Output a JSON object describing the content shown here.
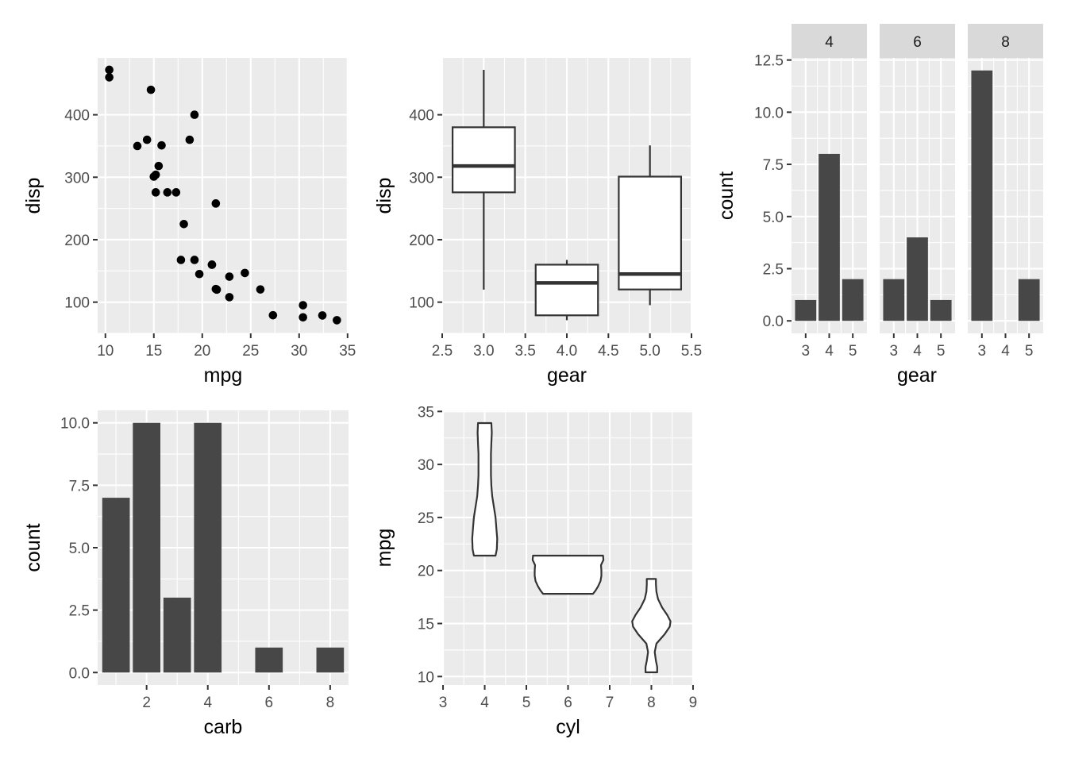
{
  "colors": {
    "panel_bg": "#ebebeb",
    "grid": "#ffffff",
    "bar": "#474747",
    "strip_bg": "#d9d9d9",
    "tick": "#333333",
    "tick_label": "#4d4d4d",
    "point": "#000000",
    "box_fill": "#ffffff",
    "outline": "#333333"
  },
  "chart_data": [
    {
      "id": "scatter",
      "type": "scatter",
      "xlabel": "mpg",
      "ylabel": "disp",
      "xlim": [
        9.2,
        35.1
      ],
      "ylim": [
        50.0,
        491.0
      ],
      "xticks": [
        10,
        15,
        20,
        25,
        30,
        35
      ],
      "yticks": [
        100,
        200,
        300,
        400
      ],
      "points": [
        {
          "x": 21.0,
          "y": 160
        },
        {
          "x": 21.0,
          "y": 160
        },
        {
          "x": 22.8,
          "y": 108
        },
        {
          "x": 21.4,
          "y": 258
        },
        {
          "x": 18.7,
          "y": 360
        },
        {
          "x": 18.1,
          "y": 225
        },
        {
          "x": 14.3,
          "y": 360
        },
        {
          "x": 24.4,
          "y": 146.7
        },
        {
          "x": 22.8,
          "y": 140.8
        },
        {
          "x": 19.2,
          "y": 167.6
        },
        {
          "x": 17.8,
          "y": 167.6
        },
        {
          "x": 16.4,
          "y": 275.8
        },
        {
          "x": 17.3,
          "y": 275.8
        },
        {
          "x": 15.2,
          "y": 275.8
        },
        {
          "x": 10.4,
          "y": 472
        },
        {
          "x": 10.4,
          "y": 460
        },
        {
          "x": 14.7,
          "y": 440
        },
        {
          "x": 32.4,
          "y": 78.7
        },
        {
          "x": 30.4,
          "y": 75.7
        },
        {
          "x": 33.9,
          "y": 71.1
        },
        {
          "x": 21.5,
          "y": 120.1
        },
        {
          "x": 15.5,
          "y": 318
        },
        {
          "x": 15.2,
          "y": 304
        },
        {
          "x": 13.3,
          "y": 350
        },
        {
          "x": 19.2,
          "y": 400
        },
        {
          "x": 27.3,
          "y": 79
        },
        {
          "x": 26.0,
          "y": 120.3
        },
        {
          "x": 30.4,
          "y": 95.1
        },
        {
          "x": 15.8,
          "y": 351
        },
        {
          "x": 19.7,
          "y": 145
        },
        {
          "x": 15.0,
          "y": 301
        },
        {
          "x": 21.4,
          "y": 121
        }
      ]
    },
    {
      "id": "boxplot",
      "type": "boxplot",
      "xlabel": "gear",
      "ylabel": "disp",
      "xlim": [
        2.5,
        5.5
      ],
      "ylim": [
        50.0,
        491.0
      ],
      "xticks": [
        2.5,
        3.0,
        3.5,
        4.0,
        4.5,
        5.0,
        5.5
      ],
      "xtick_labels": [
        "2.5",
        "3.0",
        "3.5",
        "4.0",
        "4.5",
        "5.0",
        "5.5"
      ],
      "yticks": [
        100,
        200,
        300,
        400
      ],
      "boxes": [
        {
          "x": 3,
          "min": 120.1,
          "q1": 275.8,
          "median": 318,
          "q3": 380,
          "max": 472
        },
        {
          "x": 4,
          "min": 71.1,
          "q1": 78.9,
          "median": 130.9,
          "q3": 160,
          "max": 167.6
        },
        {
          "x": 5,
          "min": 95.1,
          "q1": 120.3,
          "median": 145,
          "q3": 301,
          "max": 351
        }
      ]
    },
    {
      "id": "facet-bars",
      "type": "bar",
      "xlabel": "gear",
      "ylabel": "count",
      "ylim": [
        -0.6,
        12.6
      ],
      "yticks": [
        0.0,
        2.5,
        5.0,
        7.5,
        10.0,
        12.5
      ],
      "ytick_labels": [
        "0.0",
        "2.5",
        "5.0",
        "7.5",
        "10.0",
        "12.5"
      ],
      "categories": [
        "3",
        "4",
        "5"
      ],
      "facets": [
        {
          "label": "4",
          "values": [
            1,
            8,
            2
          ]
        },
        {
          "label": "6",
          "values": [
            2,
            4,
            1
          ]
        },
        {
          "label": "8",
          "values": [
            12,
            0,
            2
          ]
        }
      ]
    },
    {
      "id": "carb-bars",
      "type": "bar",
      "xlabel": "carb",
      "ylabel": "count",
      "xlim": [
        0.4,
        8.6
      ],
      "ylim": [
        -0.5,
        10.5
      ],
      "xticks": [
        2,
        4,
        6,
        8
      ],
      "yticks": [
        0.0,
        2.5,
        5.0,
        7.5,
        10.0
      ],
      "ytick_labels": [
        "0.0",
        "2.5",
        "5.0",
        "7.5",
        "10.0"
      ],
      "categories": [
        1,
        2,
        3,
        4,
        6,
        8
      ],
      "values": [
        7,
        10,
        3,
        10,
        1,
        1
      ]
    },
    {
      "id": "violin",
      "type": "violin",
      "xlabel": "cyl",
      "ylabel": "mpg",
      "xlim": [
        2.98,
        9.02
      ],
      "ylim": [
        9.2,
        35.1
      ],
      "xticks": [
        3,
        4,
        5,
        6,
        7,
        8,
        9
      ],
      "yticks": [
        10,
        15,
        20,
        25,
        30,
        35
      ],
      "violins": [
        {
          "x": 4,
          "profile": [
            [
              21.4,
              0.26
            ],
            [
              22.0,
              0.29
            ],
            [
              23.0,
              0.3
            ],
            [
              24.0,
              0.28
            ],
            [
              25.0,
              0.26
            ],
            [
              26.0,
              0.22
            ],
            [
              27.0,
              0.18
            ],
            [
              28.0,
              0.16
            ],
            [
              29.0,
              0.15
            ],
            [
              30.0,
              0.15
            ],
            [
              31.0,
              0.15
            ],
            [
              32.0,
              0.16
            ],
            [
              33.0,
              0.17
            ],
            [
              33.9,
              0.16
            ]
          ]
        },
        {
          "x": 6,
          "profile": [
            [
              17.8,
              0.6
            ],
            [
              18.1,
              0.66
            ],
            [
              18.5,
              0.72
            ],
            [
              19.0,
              0.78
            ],
            [
              19.5,
              0.8
            ],
            [
              20.0,
              0.8
            ],
            [
              20.5,
              0.79
            ],
            [
              21.0,
              0.85
            ],
            [
              21.4,
              0.84
            ]
          ]
        },
        {
          "x": 8,
          "profile": [
            [
              10.4,
              0.14
            ],
            [
              10.9,
              0.14
            ],
            [
              11.5,
              0.11
            ],
            [
              12.3,
              0.08
            ],
            [
              13.1,
              0.12
            ],
            [
              14.0,
              0.32
            ],
            [
              14.7,
              0.44
            ],
            [
              15.2,
              0.46
            ],
            [
              15.8,
              0.38
            ],
            [
              16.5,
              0.26
            ],
            [
              17.3,
              0.16
            ],
            [
              18.0,
              0.12
            ],
            [
              18.7,
              0.11
            ],
            [
              19.2,
              0.11
            ]
          ]
        }
      ]
    }
  ]
}
